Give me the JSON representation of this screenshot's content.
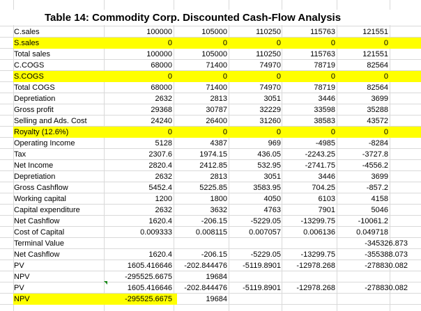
{
  "title": "Table 14: Commodity Corp. Discounted Cash-Flow Analysis",
  "highlight_color": "#ffff00",
  "rows": [
    {
      "label": "C.sales",
      "values": [
        "100000",
        "105000",
        "110250",
        "115763",
        "121551"
      ]
    },
    {
      "label": "S.sales",
      "values": [
        "0",
        "0",
        "0",
        "0",
        "0"
      ],
      "highlight": "row"
    },
    {
      "label": "Total sales",
      "values": [
        "100000",
        "105000",
        "110250",
        "115763",
        "121551"
      ]
    },
    {
      "label": "C.COGS",
      "values": [
        "68000",
        "71400",
        "74970",
        "78719",
        "82564"
      ]
    },
    {
      "label": "S.COGS",
      "values": [
        "0",
        "0",
        "0",
        "0",
        "0"
      ],
      "highlight": "row"
    },
    {
      "label": "Total COGS",
      "values": [
        "68000",
        "71400",
        "74970",
        "78719",
        "82564"
      ]
    },
    {
      "label": "Depretiation",
      "values": [
        "2632",
        "2813",
        "3051",
        "3446",
        "3699"
      ]
    },
    {
      "label": "Gross profit",
      "values": [
        "29368",
        "30787",
        "32229",
        "33598",
        "35288"
      ]
    },
    {
      "label": "Selling and Ads. Cost",
      "values": [
        "24240",
        "26400",
        "31260",
        "38583",
        "43572"
      ]
    },
    {
      "label": "Royalty (12.6%)",
      "values": [
        "0",
        "0",
        "0",
        "0",
        "0"
      ],
      "highlight": "row"
    },
    {
      "label": "Operating Income",
      "values": [
        "5128",
        "4387",
        "969",
        "-4985",
        "-8284"
      ]
    },
    {
      "label": "Tax",
      "values": [
        "2307.6",
        "1974.15",
        "436.05",
        "-2243.25",
        "-3727.8"
      ]
    },
    {
      "label": "Net Income",
      "values": [
        "2820.4",
        "2412.85",
        "532.95",
        "-2741.75",
        "-4556.2"
      ]
    },
    {
      "label": "Depretiation",
      "values": [
        "2632",
        "2813",
        "3051",
        "3446",
        "3699"
      ]
    },
    {
      "label": "Gross Cashflow",
      "values": [
        "5452.4",
        "5225.85",
        "3583.95",
        "704.25",
        "-857.2"
      ]
    },
    {
      "label": "Working capital",
      "values": [
        "1200",
        "1800",
        "4050",
        "6103",
        "4158"
      ]
    },
    {
      "label": "Capital expenditure",
      "values": [
        "2632",
        "3632",
        "4763",
        "7901",
        "5046"
      ]
    },
    {
      "label": "Net Cashflow",
      "values": [
        "1620.4",
        "-206.15",
        "-5229.05",
        "-13299.75",
        "-10061.2"
      ]
    },
    {
      "label": "Cost of Capital",
      "values": [
        "0.009333",
        "0.008115",
        "0.007057",
        "0.006136",
        "0.049718"
      ]
    },
    {
      "label": "Terminal Value",
      "values": [
        "",
        "",
        "",
        "",
        "-345326.873"
      ]
    },
    {
      "label": "Net Cashflow",
      "values": [
        "1620.4",
        "-206.15",
        "-5229.05",
        "-13299.75",
        "-355388.073"
      ]
    },
    {
      "label": "PV",
      "values": [
        "1605.416646",
        "-202.844476",
        "-5119.8901",
        "-12978.268",
        "-278830.082"
      ]
    },
    {
      "label": "NPV",
      "values": [
        "-295525.6675",
        "19684",
        "",
        "",
        ""
      ]
    },
    {
      "label": "PV",
      "values": [
        "1605.416646",
        "-202.844476",
        "-5119.8901",
        "-12978.268",
        "-278830.082"
      ]
    },
    {
      "label": "NPV",
      "values": [
        "-295525.6675",
        "19684",
        "",
        "",
        ""
      ],
      "highlight": "label"
    }
  ]
}
